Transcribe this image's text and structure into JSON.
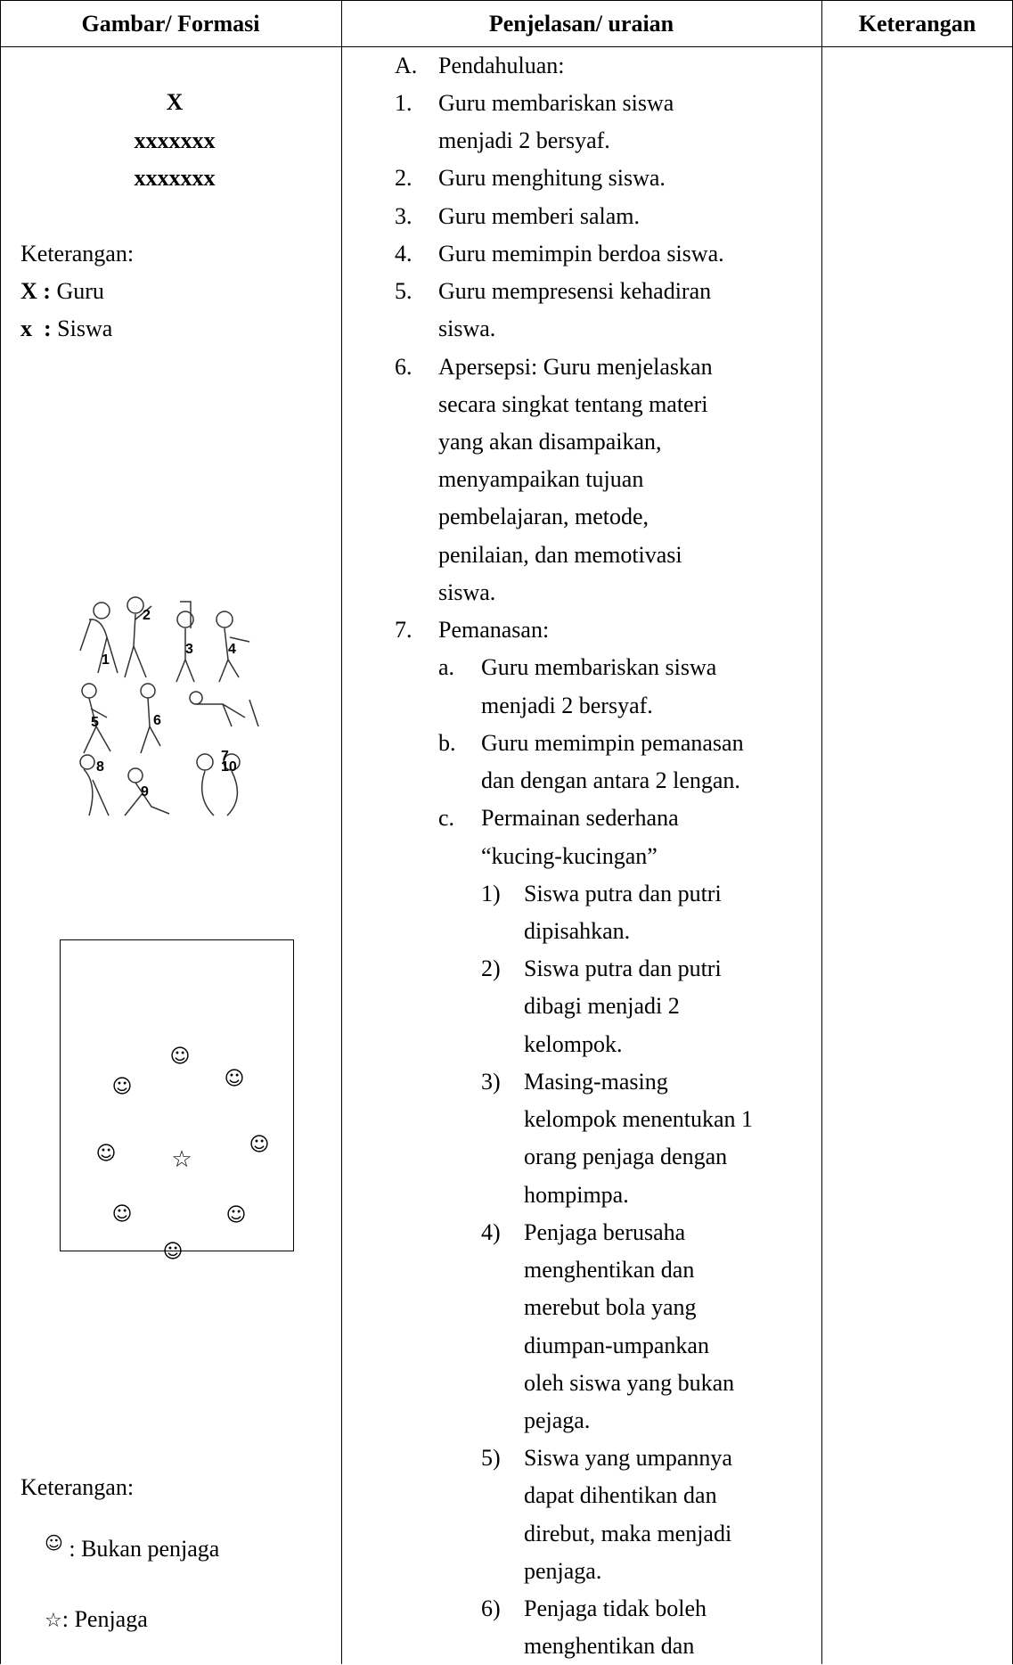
{
  "table": {
    "headers": [
      "Gambar/ Formasi",
      "Penjelasan/ uraian",
      "Keterangan"
    ],
    "formation": {
      "teacher": "X",
      "students": [
        "xxxxxxx",
        "xxxxxxx"
      ]
    },
    "legend1": {
      "title": "Keterangan:",
      "items": [
        {
          "symbol": "X :",
          "label": "Guru"
        },
        {
          "symbol": "x  :",
          "label": "Siswa"
        }
      ]
    },
    "stretch_labels": [
      "1",
      "2",
      "3",
      "4",
      "5",
      "6",
      "7",
      "8",
      "9",
      "10"
    ],
    "game": {
      "players": [
        "☺",
        "☺",
        "☺",
        "☺",
        "☺",
        "☺",
        "☺",
        "☺"
      ],
      "chaser": "☆"
    },
    "legend2": {
      "title": "Keterangan:",
      "items": [
        {
          "symbol": "☺",
          "label": ": Bukan penjaga"
        },
        {
          "symbol": "☆",
          "label": ": Penjaga"
        }
      ]
    },
    "steps": [
      {
        "marker": "A.",
        "level": 0,
        "lines": [
          "Pendahuluan:"
        ]
      },
      {
        "marker": "1.",
        "level": 0,
        "lines": [
          "Guru membariskan siswa",
          "menjadi 2 bersyaf."
        ]
      },
      {
        "marker": "2.",
        "level": 0,
        "lines": [
          "Guru menghitung siswa."
        ]
      },
      {
        "marker": "3.",
        "level": 0,
        "lines": [
          "Guru memberi salam."
        ]
      },
      {
        "marker": "4.",
        "level": 0,
        "lines": [
          "Guru memimpin berdoa siswa."
        ]
      },
      {
        "marker": "5.",
        "level": 0,
        "lines": [
          "Guru mempresensi kehadiran",
          "siswa."
        ]
      },
      {
        "marker": "6.",
        "level": 0,
        "lines": [
          "Apersepsi: Guru menjelaskan",
          "secara singkat tentang materi",
          "yang akan disampaikan,",
          "menyampaikan tujuan",
          "pembelajaran, metode,",
          "penilaian, dan memotivasi",
          "siswa."
        ]
      },
      {
        "marker": "7.",
        "level": 0,
        "lines": [
          "Pemanasan:"
        ]
      },
      {
        "marker": "a.",
        "level": 1,
        "lines": [
          "Guru membariskan siswa",
          "menjadi 2 bersyaf."
        ]
      },
      {
        "marker": "b.",
        "level": 1,
        "lines": [
          "Guru memimpin pemanasan",
          "dan dengan antara 2 lengan."
        ]
      },
      {
        "marker": "c.",
        "level": 1,
        "lines": [
          "Permainan sederhana",
          "“kucing-kucingan”"
        ]
      },
      {
        "marker": "1)",
        "level": 2,
        "lines": [
          "Siswa putra dan putri",
          "dipisahkan."
        ]
      },
      {
        "marker": "2)",
        "level": 2,
        "lines": [
          "Siswa putra dan putri",
          "dibagi menjadi 2",
          "kelompok."
        ]
      },
      {
        "marker": "3)",
        "level": 2,
        "lines": [
          "Masing-masing",
          "kelompok menentukan 1",
          "orang penjaga dengan",
          "hompimpa."
        ]
      },
      {
        "marker": "4)",
        "level": 2,
        "lines": [
          "Penjaga berusaha",
          "menghentikan dan",
          "merebut bola yang",
          "diumpan-umpankan",
          "oleh siswa yang bukan",
          "pejaga."
        ]
      },
      {
        "marker": "5)",
        "level": 2,
        "lines": [
          "Siswa yang umpannya",
          "dapat dihentikan dan",
          "direbut, maka menjadi",
          "penjaga."
        ]
      },
      {
        "marker": "6)",
        "level": 2,
        "lines": [
          "Penjaga tidak boleh",
          "menghentikan dan"
        ]
      }
    ]
  }
}
